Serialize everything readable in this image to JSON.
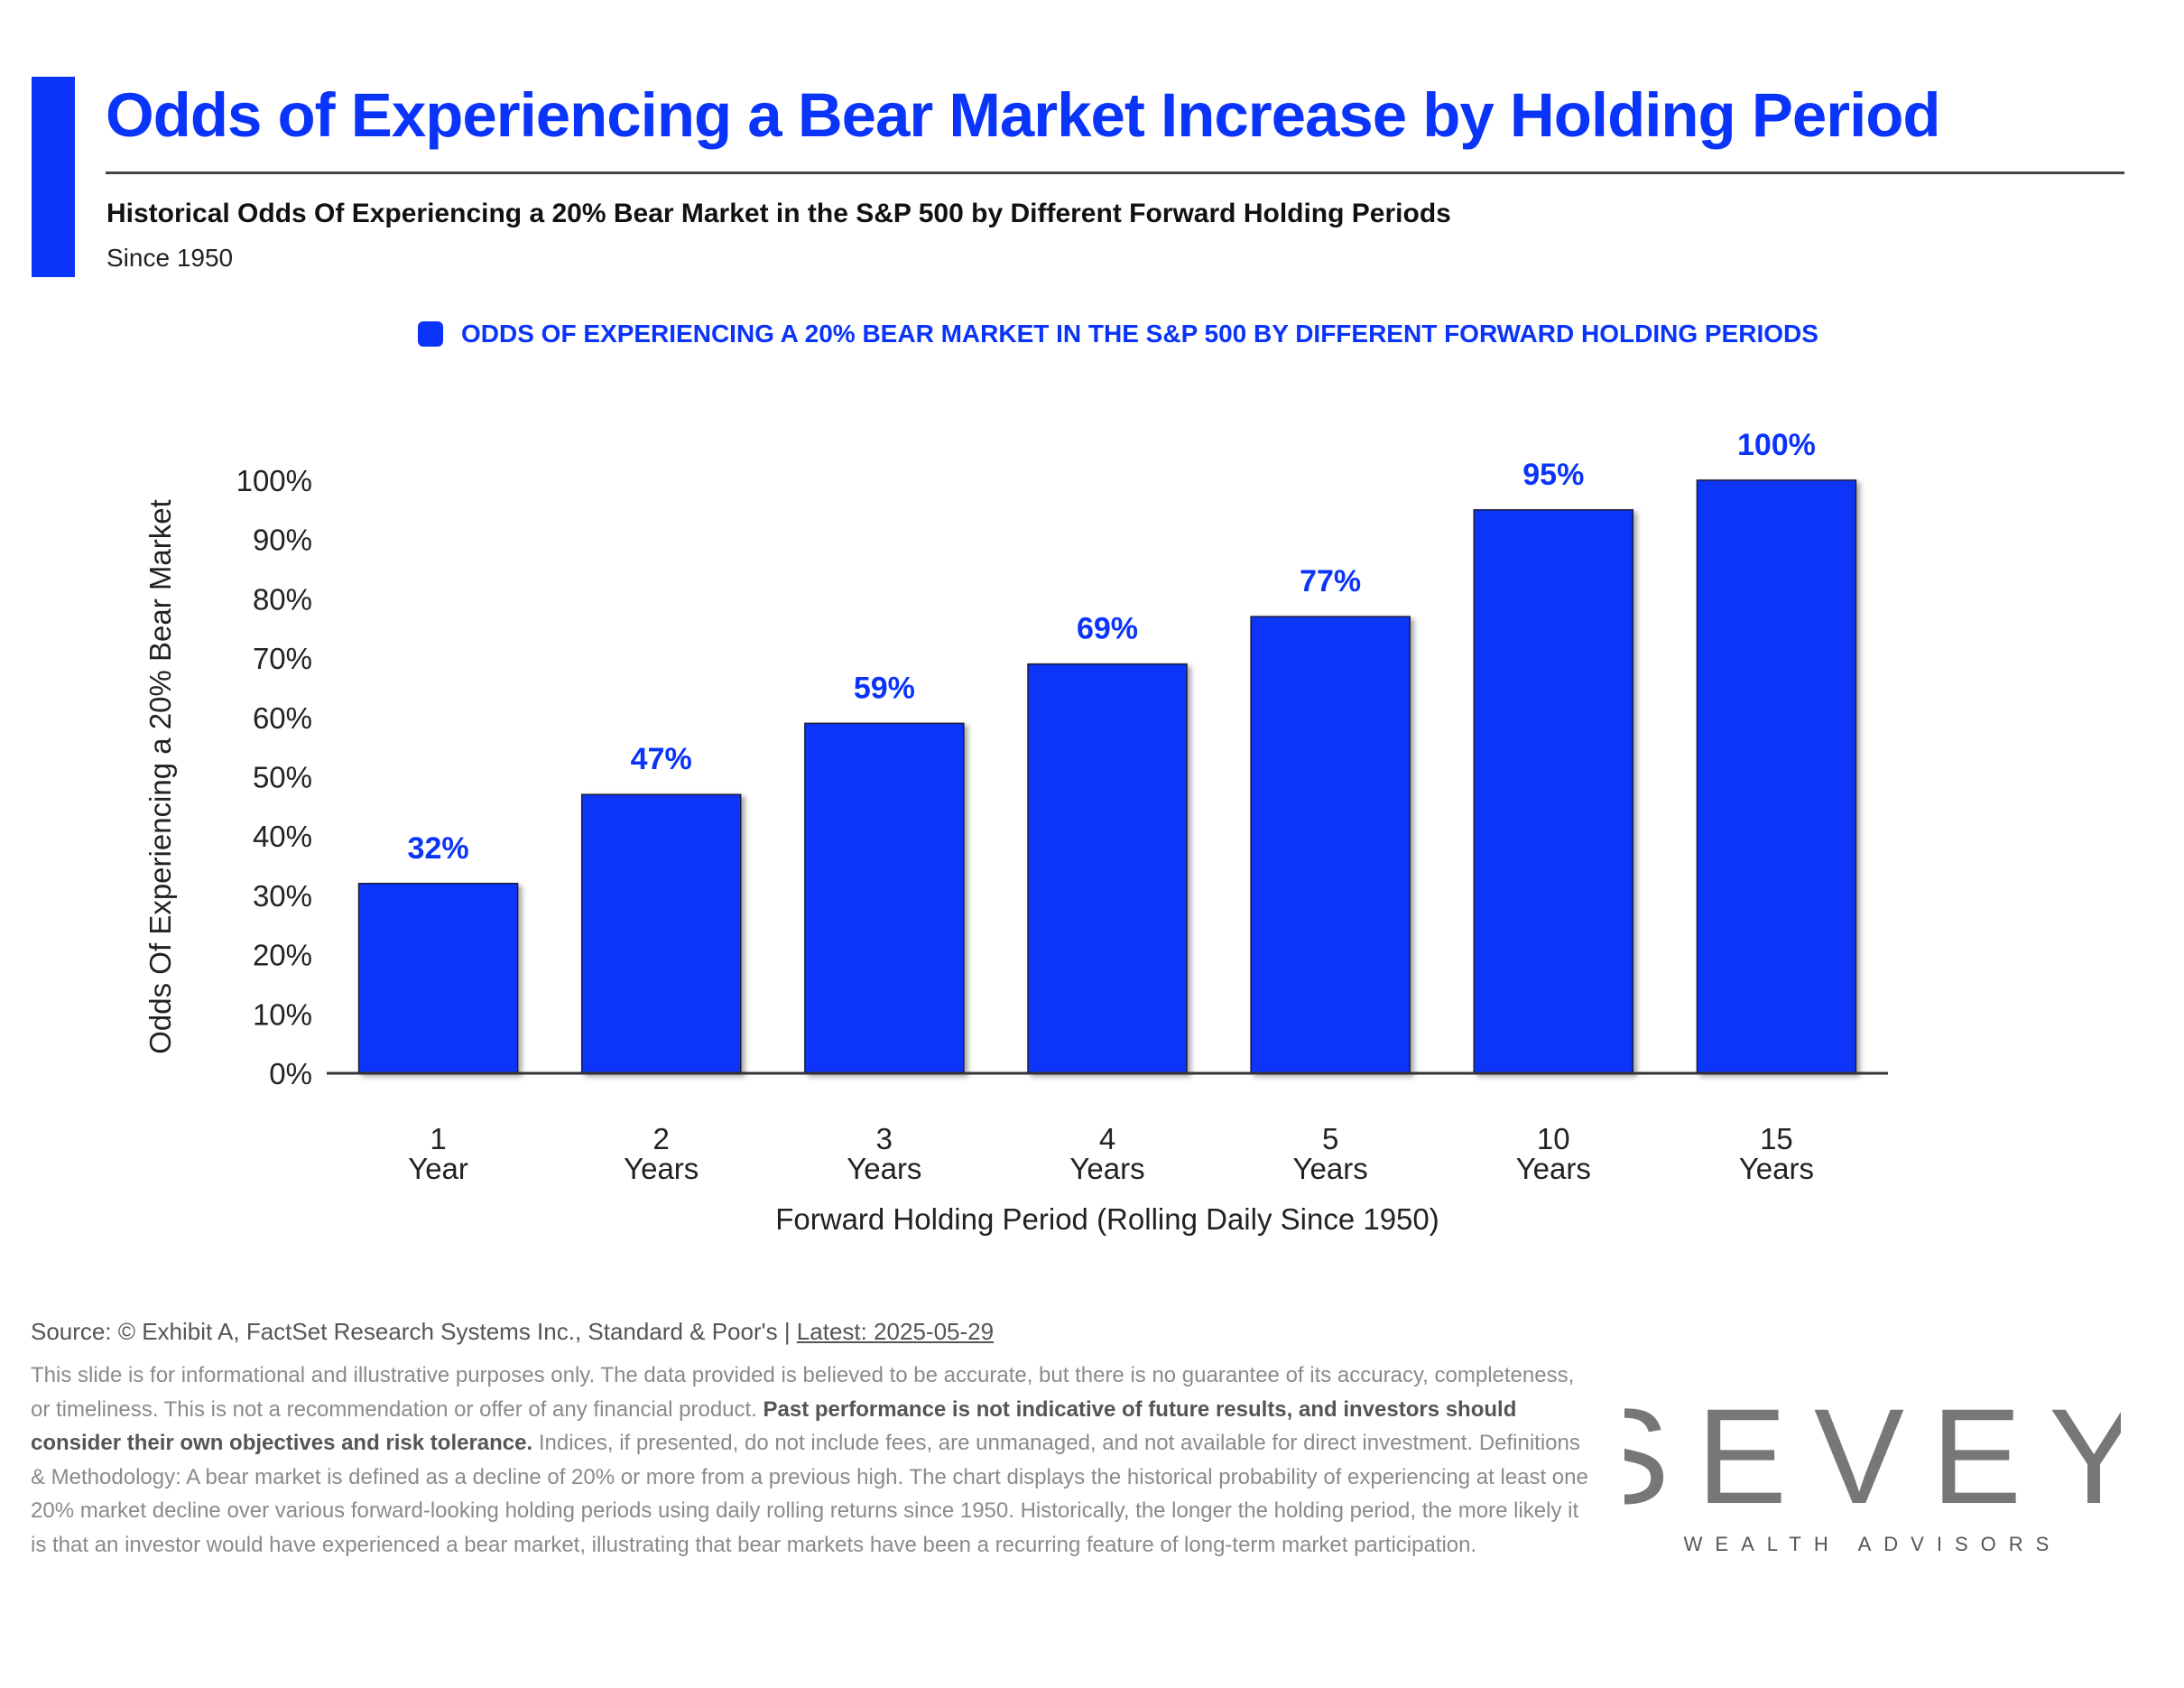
{
  "header": {
    "title": "Odds of Experiencing a Bear Market Increase by Holding Period",
    "subtitle": "Historical Odds Of Experiencing a 20% Bear Market in the S&P 500 by Different Forward Holding Periods",
    "since": "Since 1950"
  },
  "colors": {
    "accent": "#0a34fa",
    "axis": "#333333",
    "muted_text": "#8a8a8a",
    "logo_gray": "#777777"
  },
  "chart_data": {
    "type": "bar",
    "legend": "ODDS OF EXPERIENCING A 20% BEAR MARKET IN THE S&P 500 BY DIFFERENT FORWARD HOLDING PERIODS",
    "legend_position": "top-center",
    "categories": [
      {
        "number": "1",
        "unit": "Year"
      },
      {
        "number": "2",
        "unit": "Years"
      },
      {
        "number": "3",
        "unit": "Years"
      },
      {
        "number": "4",
        "unit": "Years"
      },
      {
        "number": "5",
        "unit": "Years"
      },
      {
        "number": "10",
        "unit": "Years"
      },
      {
        "number": "15",
        "unit": "Years"
      }
    ],
    "values": [
      32,
      47,
      59,
      69,
      77,
      95,
      100
    ],
    "data_labels": [
      "32%",
      "47%",
      "59%",
      "69%",
      "77%",
      "95%",
      "100%"
    ],
    "xlabel": "Forward Holding Period (Rolling Daily Since 1950)",
    "ylabel": "Odds Of Experiencing a 20% Bear Market",
    "ylim": [
      0,
      100
    ],
    "yticks": [
      "0%",
      "10%",
      "20%",
      "30%",
      "40%",
      "50%",
      "60%",
      "70%",
      "80%",
      "90%",
      "100%"
    ],
    "grid": false
  },
  "footer": {
    "source_prefix": "Source: © Exhibit A, FactSet Research Systems Inc., Standard & Poor's | ",
    "latest": "Latest: 2025-05-29",
    "disclaimer_part1": "This slide is for informational and illustrative purposes only. The data provided is believed to be accurate, but there is no guarantee of its accuracy, completeness, or timeliness. This is not a recommendation or offer of any financial product. ",
    "disclaimer_bold": "Past performance is not indicative of future results, and investors should consider their own objectives and risk tolerance.",
    "disclaimer_part2": " Indices, if presented, do not include fees, are unmanaged, and not available for direct investment. Definitions & Methodology: A bear market is defined as a decline of 20% or more from a previous high. The chart displays the historical probability of experiencing at least one 20% market decline over various forward-looking holding periods using daily rolling returns since 1950. Historically, the longer the holding period, the more likely it is that an investor would have experienced a bear market, illustrating that bear markets have been a recurring feature of long-term market participation."
  },
  "logo": {
    "brand": "SEVEY",
    "tagline": "WEALTH ADVISORS"
  }
}
